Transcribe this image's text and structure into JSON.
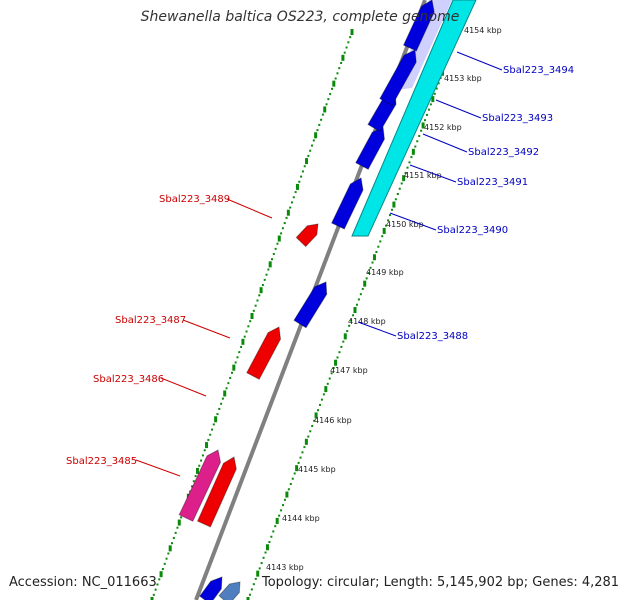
{
  "title": "Shewanella baltica OS223, complete genome",
  "footer": {
    "accession": "Accession: NC_011663",
    "summary": "Topology: circular; Length: 5,145,902 bp; Genes: 4,281"
  },
  "axis": {
    "unit": "kbp",
    "ticks": [
      "4143 kbp",
      "4144 kbp",
      "4145 kbp",
      "4146 kbp",
      "4147 kbp",
      "4148 kbp",
      "4149 kbp",
      "4150 kbp",
      "4151 kbp",
      "4152 kbp",
      "4153 kbp",
      "4154 kbp"
    ]
  },
  "colors": {
    "backbone": "#808080",
    "forward_gene": "#0000dd",
    "reverse_gene": "#ee0000",
    "pseudo_gene": "#dd1f8c",
    "forward_region": "#00e5e5",
    "label_forward": "#0000c0",
    "label_reverse": "#cc0000",
    "dots": "#0a8a0a"
  },
  "genes": [
    {
      "id": "Sbal223_3485",
      "strand": "reverse"
    },
    {
      "id": "Sbal223_3486",
      "strand": "reverse"
    },
    {
      "id": "Sbal223_3487",
      "strand": "reverse"
    },
    {
      "id": "Sbal223_3488",
      "strand": "forward"
    },
    {
      "id": "Sbal223_3489",
      "strand": "reverse"
    },
    {
      "id": "Sbal223_3490",
      "strand": "forward"
    },
    {
      "id": "Sbal223_3491",
      "strand": "forward"
    },
    {
      "id": "Sbal223_3492",
      "strand": "forward"
    },
    {
      "id": "Sbal223_3493",
      "strand": "forward"
    },
    {
      "id": "Sbal223_3494",
      "strand": "forward"
    }
  ]
}
